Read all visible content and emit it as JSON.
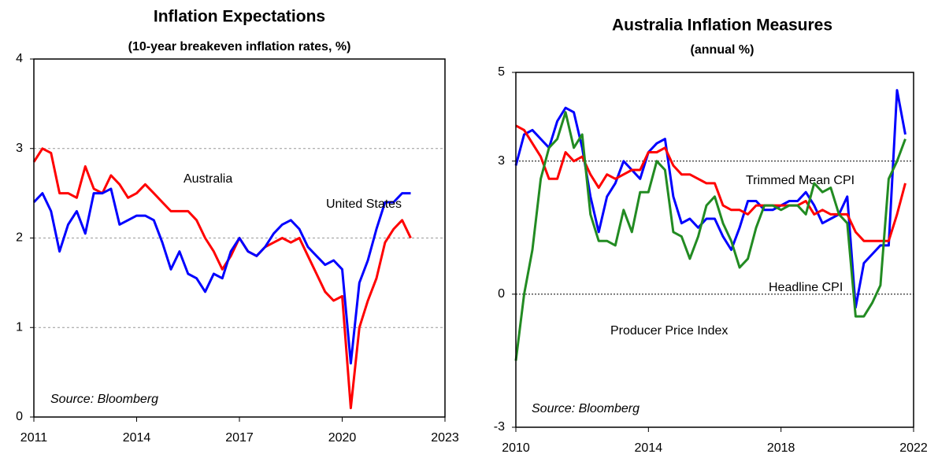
{
  "chart_data": [
    {
      "type": "line",
      "title": "Inflation Expectations",
      "subtitle": "(10-year breakeven inflation rates, %)",
      "x": [
        2011,
        2011.25,
        2011.5,
        2011.75,
        2012,
        2012.25,
        2012.5,
        2012.75,
        2013,
        2013.25,
        2013.5,
        2013.75,
        2014,
        2014.25,
        2014.5,
        2014.75,
        2015,
        2015.25,
        2015.5,
        2015.75,
        2016,
        2016.25,
        2016.5,
        2016.75,
        2017,
        2017.25,
        2017.5,
        2017.75,
        2018,
        2018.25,
        2018.5,
        2018.75,
        2019,
        2019.25,
        2019.5,
        2019.75,
        2020,
        2020.25,
        2020.5,
        2020.75,
        2021,
        2021.25,
        2021.5,
        2021.75,
        2022
      ],
      "series": [
        {
          "name": "Australia",
          "color": "#ff0000",
          "values": [
            2.85,
            3.0,
            2.95,
            2.5,
            2.5,
            2.45,
            2.8,
            2.55,
            2.5,
            2.7,
            2.6,
            2.45,
            2.5,
            2.6,
            2.5,
            2.4,
            2.3,
            2.3,
            2.3,
            2.2,
            2.0,
            1.85,
            1.65,
            1.8,
            2.0,
            1.85,
            1.8,
            1.9,
            1.95,
            2.0,
            1.95,
            2.0,
            1.8,
            1.6,
            1.4,
            1.3,
            1.35,
            0.1,
            1.0,
            1.3,
            1.55,
            1.95,
            2.1,
            2.2,
            2.0
          ]
        },
        {
          "name": "United States",
          "color": "#0000ff",
          "values": [
            2.4,
            2.5,
            2.3,
            1.85,
            2.15,
            2.3,
            2.05,
            2.5,
            2.5,
            2.55,
            2.15,
            2.2,
            2.25,
            2.25,
            2.2,
            1.95,
            1.65,
            1.85,
            1.6,
            1.55,
            1.4,
            1.6,
            1.55,
            1.85,
            2.0,
            1.85,
            1.8,
            1.9,
            2.05,
            2.15,
            2.2,
            2.1,
            1.9,
            1.8,
            1.7,
            1.75,
            1.65,
            0.6,
            1.5,
            1.75,
            2.1,
            2.4,
            2.4,
            2.5,
            2.5
          ]
        }
      ],
      "xlim": [
        2011,
        2023
      ],
      "xticks": [
        2011,
        2014,
        2017,
        2020,
        2023
      ],
      "ylim": [
        0,
        4
      ],
      "yticks": [
        0,
        1,
        2,
        3,
        4
      ],
      "grid": true,
      "annotations": [
        "Source: Bloomberg"
      ]
    },
    {
      "type": "line",
      "title": "Australia Inflation Measures",
      "subtitle": "(annual %)",
      "x": [
        2010,
        2010.25,
        2010.5,
        2010.75,
        2011,
        2011.25,
        2011.5,
        2011.75,
        2012,
        2012.25,
        2012.5,
        2012.75,
        2013,
        2013.25,
        2013.5,
        2013.75,
        2014,
        2014.25,
        2014.5,
        2014.75,
        2015,
        2015.25,
        2015.5,
        2015.75,
        2016,
        2016.25,
        2016.5,
        2016.75,
        2017,
        2017.25,
        2017.5,
        2017.75,
        2018,
        2018.25,
        2018.5,
        2018.75,
        2019,
        2019.25,
        2019.5,
        2019.75,
        2020,
        2020.25,
        2020.5,
        2020.75,
        2021,
        2021.25,
        2021.5,
        2021.75
      ],
      "series": [
        {
          "name": "Headline CPI",
          "color": "#0000ff",
          "values": [
            2.9,
            3.6,
            3.7,
            3.5,
            3.3,
            3.9,
            4.2,
            4.1,
            3.3,
            2.2,
            1.4,
            2.2,
            2.5,
            3.0,
            2.8,
            2.6,
            3.2,
            3.4,
            3.5,
            2.2,
            1.6,
            1.7,
            1.5,
            1.7,
            1.7,
            1.3,
            1.0,
            1.5,
            2.1,
            2.1,
            1.9,
            1.9,
            2.0,
            2.1,
            2.1,
            2.3,
            2.0,
            1.6,
            1.7,
            1.8,
            2.2,
            -0.3,
            0.7,
            0.9,
            1.1,
            1.1,
            4.6,
            3.6
          ]
        },
        {
          "name": "Trimmed Mean CPI",
          "color": "#ff0000",
          "values": [
            3.8,
            3.7,
            3.4,
            3.1,
            2.6,
            2.6,
            3.2,
            3.0,
            3.1,
            2.7,
            2.4,
            2.7,
            2.6,
            2.7,
            2.8,
            2.8,
            3.2,
            3.2,
            3.3,
            2.9,
            2.7,
            2.7,
            2.6,
            2.5,
            2.5,
            2.0,
            1.9,
            1.9,
            1.8,
            2.0,
            2.0,
            2.0,
            2.0,
            2.0,
            2.0,
            2.1,
            1.8,
            1.9,
            1.8,
            1.8,
            1.8,
            1.4,
            1.2,
            1.2,
            1.2,
            1.2,
            1.8,
            2.5
          ]
        },
        {
          "name": "Producer Price Index",
          "color": "#228b22",
          "values": [
            -1.5,
            0.0,
            1.0,
            2.6,
            3.3,
            3.5,
            4.1,
            3.3,
            3.6,
            1.8,
            1.2,
            1.2,
            1.1,
            1.9,
            1.4,
            2.3,
            2.3,
            3.0,
            2.8,
            1.4,
            1.3,
            0.8,
            1.3,
            2.0,
            2.2,
            1.6,
            1.2,
            0.6,
            0.8,
            1.5,
            2.0,
            2.0,
            1.9,
            2.0,
            2.0,
            1.8,
            2.5,
            2.3,
            2.4,
            1.8,
            1.6,
            -0.5,
            -0.5,
            -0.2,
            0.2,
            2.6,
            3.0,
            3.5
          ]
        }
      ],
      "xlim": [
        2010,
        2022
      ],
      "xticks": [
        2010,
        2014,
        2018,
        2022
      ],
      "ylim": [
        -3,
        5
      ],
      "yticks": [
        -3,
        0,
        3,
        5
      ],
      "reference_lines": [
        0,
        3
      ],
      "annotations": [
        "Source: Bloomberg"
      ]
    }
  ]
}
